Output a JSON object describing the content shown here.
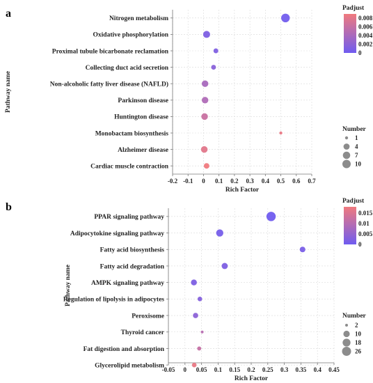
{
  "chart_data": [
    {
      "panel": "a",
      "type": "scatter",
      "title": "",
      "xlabel": "Rich Factor",
      "ylabel": "Pathway name",
      "xlim": [
        -0.2,
        0.7
      ],
      "xticks": [
        -0.2,
        -0.1,
        0,
        0.1,
        0.2,
        0.3,
        0.4,
        0.5,
        0.6,
        0.7
      ],
      "xtick_labels": [
        "-0.2",
        "-0.1",
        "0",
        "0.1",
        "0.2",
        "0.3",
        "0.4",
        "0.5",
        "0.6",
        "0.7"
      ],
      "grid": true,
      "categories": [
        "Nitrogen metabolism",
        "Oxidative phosphorylation",
        "Proximal tubule bicarbonate reclamation",
        "Collecting duct acid secretion",
        "Non-alcoholic fatty liver disease (NAFLD)",
        "Parkinson disease",
        "Huntington disease",
        "Monobactam biosynthesis",
        "Alzheimer disease",
        "Cardiac muscle contraction"
      ],
      "points": [
        {
          "pathway": "Nitrogen metabolism",
          "rich_factor": 0.53,
          "number": 11,
          "padjust": 0.0002
        },
        {
          "pathway": "Oxidative phosphorylation",
          "rich_factor": 0.02,
          "number": 6,
          "padjust": 0.001
        },
        {
          "pathway": "Proximal tubule bicarbonate reclamation",
          "rich_factor": 0.08,
          "number": 2,
          "padjust": 0.0012
        },
        {
          "pathway": "Collecting duct acid secretion",
          "rich_factor": 0.065,
          "number": 2,
          "padjust": 0.0018
        },
        {
          "pathway": "Non-alcoholic fatty liver disease (NAFLD)",
          "rich_factor": 0.01,
          "number": 5,
          "padjust": 0.004
        },
        {
          "pathway": "Parkinson disease",
          "rich_factor": 0.01,
          "number": 5,
          "padjust": 0.0045
        },
        {
          "pathway": "Huntington disease",
          "rich_factor": 0.007,
          "number": 5,
          "padjust": 0.0062
        },
        {
          "pathway": "Monobactam biosynthesis",
          "rich_factor": 0.5,
          "number": 1,
          "padjust": 0.0085
        },
        {
          "pathway": "Alzheimer disease",
          "rich_factor": 0.005,
          "number": 5,
          "padjust": 0.008
        },
        {
          "pathway": "Cardiac muscle contraction",
          "rich_factor": 0.02,
          "number": 3,
          "padjust": 0.009
        }
      ],
      "color_legend": {
        "title": "Padjust",
        "min": 0,
        "max": 0.009,
        "ticks": [
          0.008,
          0.006,
          0.004,
          0.002,
          0
        ],
        "tick_labels": [
          "0.008",
          "0.006",
          "0.004",
          "0.002",
          "0"
        ],
        "low_color": "#6f5cf0",
        "high_color": "#f07a7e"
      },
      "size_legend": {
        "title": "Number",
        "values": [
          1,
          4,
          7,
          10
        ],
        "labels": [
          "1",
          "4",
          "7",
          "10"
        ]
      },
      "legend_placement": "right"
    },
    {
      "panel": "b",
      "type": "scatter",
      "title": "",
      "xlabel": "Rich Factor",
      "ylabel": "Pathway name",
      "xlim": [
        -0.05,
        0.45
      ],
      "xticks": [
        -0.05,
        0,
        0.05,
        0.1,
        0.15,
        0.2,
        0.25,
        0.3,
        0.35,
        0.4,
        0.45
      ],
      "xtick_labels": [
        "-0.05",
        "0",
        "0.05",
        "0.1",
        "0.15",
        "0.2",
        "0.25",
        "0.3",
        "0.35",
        "0.4",
        "0.45"
      ],
      "grid": true,
      "categories": [
        "PPAR signaling pathway",
        "Adipocytokine signaling pathway",
        "Fatty acid biosynthesis",
        "Fatty acid degradation",
        "AMPK signaling pathway",
        "Regulation of lipolysis in adipocytes",
        "Peroxisome",
        "Thyroid cancer",
        "Fat digestion and absorption",
        "Glycerolipid metabolism"
      ],
      "points": [
        {
          "pathway": "PPAR signaling pathway",
          "rich_factor": 0.26,
          "number": 28,
          "padjust": 0.0002
        },
        {
          "pathway": "Adipocytokine signaling pathway",
          "rich_factor": 0.105,
          "number": 14,
          "padjust": 0.001
        },
        {
          "pathway": "Fatty acid biosynthesis",
          "rich_factor": 0.355,
          "number": 7,
          "padjust": 0.0015
        },
        {
          "pathway": "Fatty acid degradation",
          "rich_factor": 0.12,
          "number": 9,
          "padjust": 0.002
        },
        {
          "pathway": "AMPK signaling pathway",
          "rich_factor": 0.027,
          "number": 8,
          "padjust": 0.002
        },
        {
          "pathway": "Regulation of lipolysis in adipocytes",
          "rich_factor": 0.045,
          "number": 4,
          "padjust": 0.003
        },
        {
          "pathway": "Peroxisome",
          "rich_factor": 0.032,
          "number": 6,
          "padjust": 0.004
        },
        {
          "pathway": "Thyroid cancer",
          "rich_factor": 0.052,
          "number": 2,
          "padjust": 0.01
        },
        {
          "pathway": "Fat digestion and absorption",
          "rich_factor": 0.043,
          "number": 3,
          "padjust": 0.012
        },
        {
          "pathway": "Glycerolipid metabolism",
          "rich_factor": 0.028,
          "number": 4,
          "padjust": 0.017
        }
      ],
      "color_legend": {
        "title": "Padjust",
        "min": 0,
        "max": 0.018,
        "ticks": [
          0.015,
          0.01,
          0.005,
          0
        ],
        "tick_labels": [
          "0.015",
          "0.01",
          "0.005",
          "0"
        ],
        "low_color": "#6f5cf0",
        "high_color": "#f07a7e"
      },
      "size_legend": {
        "title": "Number",
        "values": [
          2,
          10,
          18,
          26
        ],
        "labels": [
          "2",
          "10",
          "18",
          "26"
        ]
      },
      "legend_placement": "right"
    }
  ]
}
